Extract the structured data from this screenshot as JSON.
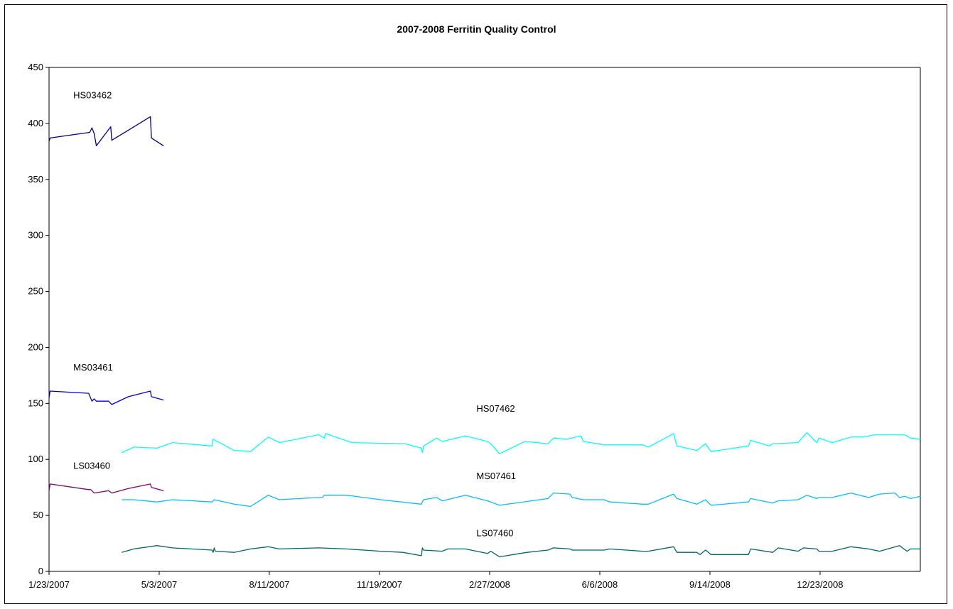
{
  "chart_data": {
    "type": "line",
    "title": "2007-2008 Ferritin Quality Control",
    "xlabel": "",
    "ylabel": "",
    "ylim": [
      0,
      450
    ],
    "y_ticks": [
      0,
      50,
      100,
      150,
      200,
      250,
      300,
      350,
      400,
      450
    ],
    "x_range": [
      "2007-01-23",
      "2009-03-24"
    ],
    "x_ticks": [
      "2007-01-23",
      "2007-05-03",
      "2007-08-11",
      "2007-11-19",
      "2008-02-27",
      "2008-06-06",
      "2008-09-14",
      "2008-12-23"
    ],
    "x_tick_labels": [
      "1/23/2007",
      "5/3/2007",
      "8/11/2007",
      "11/19/2007",
      "2/27/2008",
      "6/6/2008",
      "9/14/2008",
      "12/23/2008"
    ],
    "grid": false,
    "legend": "none",
    "series": [
      {
        "name": "HS03462",
        "color": "#000080",
        "points": [
          [
            "2007-01-23",
            384
          ],
          [
            "2007-01-24",
            387
          ],
          [
            "2007-03-01",
            392
          ],
          [
            "2007-03-03",
            396
          ],
          [
            "2007-03-05",
            391
          ],
          [
            "2007-03-07",
            380
          ],
          [
            "2007-03-20",
            397
          ],
          [
            "2007-03-21",
            385
          ],
          [
            "2007-04-05",
            394
          ],
          [
            "2007-04-25",
            406
          ],
          [
            "2007-04-26",
            387
          ],
          [
            "2007-05-07",
            380
          ]
        ]
      },
      {
        "name": "MS03461",
        "color": "#0000CD",
        "points": [
          [
            "2007-01-23",
            155
          ],
          [
            "2007-01-24",
            161
          ],
          [
            "2007-02-28",
            159
          ],
          [
            "2007-03-03",
            152
          ],
          [
            "2007-03-05",
            154
          ],
          [
            "2007-03-07",
            152
          ],
          [
            "2007-03-18",
            152
          ],
          [
            "2007-03-21",
            149
          ],
          [
            "2007-04-05",
            156
          ],
          [
            "2007-04-25",
            161
          ],
          [
            "2007-04-26",
            156
          ],
          [
            "2007-05-07",
            153
          ]
        ]
      },
      {
        "name": "LS03460",
        "color": "#800060",
        "points": [
          [
            "2007-01-23",
            72
          ],
          [
            "2007-01-24",
            78
          ],
          [
            "2007-02-28",
            73
          ],
          [
            "2007-03-02",
            73
          ],
          [
            "2007-03-05",
            70
          ],
          [
            "2007-03-18",
            72
          ],
          [
            "2007-03-21",
            70
          ],
          [
            "2007-04-05",
            74
          ],
          [
            "2007-04-25",
            78
          ],
          [
            "2007-04-26",
            75
          ],
          [
            "2007-05-07",
            72
          ]
        ]
      },
      {
        "name": "HS07462",
        "color": "#00FFFF",
        "points": [
          [
            "2007-03-30",
            106
          ],
          [
            "2007-04-10",
            111
          ],
          [
            "2007-05-01",
            110
          ],
          [
            "2007-05-15",
            115
          ],
          [
            "2007-06-20",
            112
          ],
          [
            "2007-06-21",
            118
          ],
          [
            "2007-07-10",
            108
          ],
          [
            "2007-07-25",
            107
          ],
          [
            "2007-08-10",
            120
          ],
          [
            "2007-08-20",
            115
          ],
          [
            "2007-09-25",
            122
          ],
          [
            "2007-09-30",
            119
          ],
          [
            "2007-10-01",
            123
          ],
          [
            "2007-10-25",
            115
          ],
          [
            "2007-12-12",
            114
          ],
          [
            "2007-12-27",
            110
          ],
          [
            "2007-12-28",
            106
          ],
          [
            "2007-12-29",
            112
          ],
          [
            "2008-01-10",
            119
          ],
          [
            "2008-01-15",
            116
          ],
          [
            "2008-02-05",
            121
          ],
          [
            "2008-02-25",
            116
          ],
          [
            "2008-02-28",
            114
          ],
          [
            "2008-03-07",
            105
          ],
          [
            "2008-03-30",
            116
          ],
          [
            "2008-04-20",
            114
          ],
          [
            "2008-04-25",
            119
          ],
          [
            "2008-05-07",
            118
          ],
          [
            "2008-05-20",
            121
          ],
          [
            "2008-05-22",
            116
          ],
          [
            "2008-06-10",
            113
          ],
          [
            "2008-07-15",
            113
          ],
          [
            "2008-07-20",
            111
          ],
          [
            "2008-08-12",
            123
          ],
          [
            "2008-08-15",
            112
          ],
          [
            "2008-09-02",
            108
          ],
          [
            "2008-09-10",
            114
          ],
          [
            "2008-09-15",
            107
          ],
          [
            "2008-10-19",
            112
          ],
          [
            "2008-10-21",
            117
          ],
          [
            "2008-11-07",
            112
          ],
          [
            "2008-11-10",
            114
          ],
          [
            "2008-12-03",
            115
          ],
          [
            "2008-12-11",
            124
          ],
          [
            "2008-12-20",
            115
          ],
          [
            "2008-12-22",
            119
          ],
          [
            "2009-01-03",
            115
          ],
          [
            "2009-01-20",
            120
          ],
          [
            "2009-02-01",
            120
          ],
          [
            "2009-02-10",
            122
          ],
          [
            "2009-03-10",
            122
          ],
          [
            "2009-03-15",
            119
          ],
          [
            "2009-03-24",
            118
          ]
        ]
      },
      {
        "name": "MS07461",
        "color": "#00BFFF",
        "points": [
          [
            "2007-03-30",
            64
          ],
          [
            "2007-04-10",
            64
          ],
          [
            "2007-05-01",
            62
          ],
          [
            "2007-05-15",
            64
          ],
          [
            "2007-06-20",
            62
          ],
          [
            "2007-06-22",
            64
          ],
          [
            "2007-07-10",
            60
          ],
          [
            "2007-07-25",
            58
          ],
          [
            "2007-08-10",
            68
          ],
          [
            "2007-08-20",
            64
          ],
          [
            "2007-09-25",
            66
          ],
          [
            "2007-09-28",
            66
          ],
          [
            "2007-09-30",
            68
          ],
          [
            "2007-10-20",
            68
          ],
          [
            "2007-11-20",
            64
          ],
          [
            "2007-12-27",
            60
          ],
          [
            "2007-12-29",
            64
          ],
          [
            "2008-01-10",
            66
          ],
          [
            "2008-01-15",
            63
          ],
          [
            "2008-02-05",
            68
          ],
          [
            "2008-02-25",
            63
          ],
          [
            "2008-02-28",
            62
          ],
          [
            "2008-03-07",
            59
          ],
          [
            "2008-04-20",
            65
          ],
          [
            "2008-04-25",
            70
          ],
          [
            "2008-05-10",
            69
          ],
          [
            "2008-05-12",
            66
          ],
          [
            "2008-05-22",
            64
          ],
          [
            "2008-06-10",
            64
          ],
          [
            "2008-06-15",
            62
          ],
          [
            "2008-07-15",
            60
          ],
          [
            "2008-07-20",
            60
          ],
          [
            "2008-08-12",
            69
          ],
          [
            "2008-08-15",
            65
          ],
          [
            "2008-09-02",
            60
          ],
          [
            "2008-09-10",
            64
          ],
          [
            "2008-09-15",
            59
          ],
          [
            "2008-10-19",
            62
          ],
          [
            "2008-10-21",
            65
          ],
          [
            "2008-11-10",
            61
          ],
          [
            "2008-11-15",
            63
          ],
          [
            "2008-12-03",
            64
          ],
          [
            "2008-12-11",
            68
          ],
          [
            "2008-12-20",
            65
          ],
          [
            "2008-12-22",
            66
          ],
          [
            "2009-01-03",
            66
          ],
          [
            "2009-01-20",
            70
          ],
          [
            "2009-02-05",
            66
          ],
          [
            "2009-02-15",
            69
          ],
          [
            "2009-03-01",
            70
          ],
          [
            "2009-03-05",
            66
          ],
          [
            "2009-03-10",
            67
          ],
          [
            "2009-03-15",
            65
          ],
          [
            "2009-03-24",
            67
          ]
        ]
      },
      {
        "name": "LS07460",
        "color": "#006666",
        "points": [
          [
            "2007-03-30",
            17
          ],
          [
            "2007-04-10",
            20
          ],
          [
            "2007-05-01",
            23
          ],
          [
            "2007-05-15",
            21
          ],
          [
            "2007-06-20",
            19
          ],
          [
            "2007-06-21",
            17
          ],
          [
            "2007-06-22",
            21
          ],
          [
            "2007-06-23",
            18
          ],
          [
            "2007-07-10",
            17
          ],
          [
            "2007-07-25",
            20
          ],
          [
            "2007-08-10",
            22
          ],
          [
            "2007-08-20",
            20
          ],
          [
            "2007-09-25",
            21
          ],
          [
            "2007-10-20",
            20
          ],
          [
            "2007-11-20",
            18
          ],
          [
            "2007-12-10",
            17
          ],
          [
            "2007-12-27",
            14
          ],
          [
            "2007-12-28",
            21
          ],
          [
            "2007-12-29",
            19
          ],
          [
            "2008-01-15",
            18
          ],
          [
            "2008-01-20",
            20
          ],
          [
            "2008-02-05",
            20
          ],
          [
            "2008-02-25",
            16
          ],
          [
            "2008-02-28",
            18
          ],
          [
            "2008-03-07",
            13
          ],
          [
            "2008-04-01",
            17
          ],
          [
            "2008-04-20",
            19
          ],
          [
            "2008-04-25",
            21
          ],
          [
            "2008-05-10",
            20
          ],
          [
            "2008-05-12",
            19
          ],
          [
            "2008-05-22",
            19
          ],
          [
            "2008-06-10",
            19
          ],
          [
            "2008-06-15",
            20
          ],
          [
            "2008-07-15",
            18
          ],
          [
            "2008-07-20",
            18
          ],
          [
            "2008-08-12",
            22
          ],
          [
            "2008-08-15",
            17
          ],
          [
            "2008-09-02",
            17
          ],
          [
            "2008-09-05",
            15
          ],
          [
            "2008-09-10",
            19
          ],
          [
            "2008-09-15",
            15
          ],
          [
            "2008-10-19",
            15
          ],
          [
            "2008-10-21",
            20
          ],
          [
            "2008-11-10",
            17
          ],
          [
            "2008-11-15",
            21
          ],
          [
            "2008-12-03",
            18
          ],
          [
            "2008-12-08",
            21
          ],
          [
            "2008-12-20",
            20
          ],
          [
            "2008-12-22",
            18
          ],
          [
            "2009-01-03",
            18
          ],
          [
            "2009-01-20",
            22
          ],
          [
            "2009-02-05",
            20
          ],
          [
            "2009-02-15",
            18
          ],
          [
            "2009-03-05",
            23
          ],
          [
            "2009-03-12",
            18
          ],
          [
            "2009-03-15",
            20
          ],
          [
            "2009-03-24",
            20
          ]
        ]
      }
    ],
    "annotations": [
      {
        "text": "HS03462",
        "x": "2007-02-14",
        "y": 425
      },
      {
        "text": "MS03461",
        "x": "2007-02-14",
        "y": 182
      },
      {
        "text": "HS07462",
        "x": "2008-02-15",
        "y": 145
      },
      {
        "text": "LS03460",
        "x": "2007-02-14",
        "y": 94
      },
      {
        "text": "MS07461",
        "x": "2008-02-15",
        "y": 85
      },
      {
        "text": "LS07460",
        "x": "2008-02-15",
        "y": 34
      }
    ]
  }
}
